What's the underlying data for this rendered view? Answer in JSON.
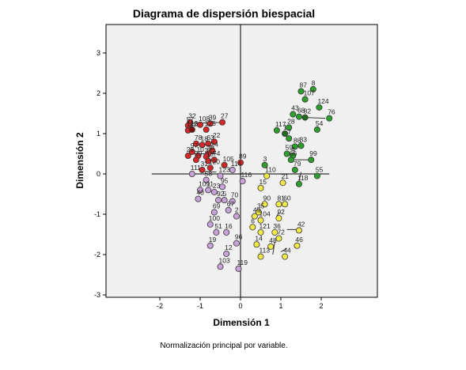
{
  "chart_data": {
    "type": "scatter",
    "title": "Diagrama de dispersión biespacial",
    "xlabel": "Dimensión 1",
    "ylabel": "Dimensión 2",
    "footnote": "Normalización principal por variable.",
    "xlim": [
      -3.2,
      3.3
    ],
    "ylim": [
      -3,
      3.7
    ],
    "xticks": [
      "-2",
      "-1",
      "0",
      "1",
      "2"
    ],
    "yticks": [
      "3",
      "2",
      "1",
      "0",
      "-1",
      "-2",
      "-3"
    ],
    "grid": false,
    "colors": {
      "red": "#d62728",
      "darkred": "#7a1010",
      "green": "#2ca02c",
      "darkgreen": "#1d6b1d",
      "yellow": "#f2e94a",
      "purple": "#c8a2d8",
      "background": "#f0f0f0"
    },
    "vectors": [
      {
        "from": [
          -1.2,
          1.25
        ],
        "to": [
          -0.45,
          1.28
        ]
      },
      {
        "from": [
          -1.2,
          0.5
        ],
        "to": [
          -0.6,
          0.5
        ]
      },
      {
        "from": [
          1.62,
          1.4
        ],
        "to": [
          2.1,
          1.38
        ]
      },
      {
        "from": [
          1.3,
          0.35
        ],
        "to": [
          1.75,
          0.35
        ]
      },
      {
        "from": [
          1.5,
          0.05
        ],
        "to": [
          1.45,
          -0.2
        ]
      },
      {
        "from": [
          0.95,
          -0.95
        ],
        "to": [
          0.9,
          -1.05
        ]
      },
      {
        "from": [
          1.15,
          -1.38
        ],
        "to": [
          1.45,
          -1.38
        ]
      },
      {
        "from": [
          1.0,
          -1.93
        ],
        "to": [
          1.15,
          -1.85
        ]
      },
      {
        "from": [
          0.85,
          -1.68
        ],
        "to": [
          0.8,
          -2.0
        ]
      },
      {
        "from": [
          -0.85,
          0.05
        ],
        "to": [
          -0.6,
          0.05
        ]
      }
    ],
    "points": [
      {
        "label": "8",
        "x": 1.8,
        "y": 2.1,
        "color": "green"
      },
      {
        "label": "87",
        "x": 1.5,
        "y": 2.05,
        "color": "green"
      },
      {
        "label": "107",
        "x": 1.6,
        "y": 1.85,
        "color": "green"
      },
      {
        "label": "124",
        "x": 1.95,
        "y": 1.65,
        "color": "green"
      },
      {
        "label": "43",
        "x": 1.3,
        "y": 1.48,
        "color": "green"
      },
      {
        "label": "68",
        "x": 1.45,
        "y": 1.42,
        "color": "green"
      },
      {
        "label": "82",
        "x": 1.6,
        "y": 1.4,
        "color": "darkgreen"
      },
      {
        "label": "76",
        "x": 2.2,
        "y": 1.38,
        "color": "green"
      },
      {
        "label": "54",
        "x": 1.9,
        "y": 1.1,
        "color": "green"
      },
      {
        "label": "28",
        "x": 1.2,
        "y": 1.15,
        "color": "green"
      },
      {
        "label": "117",
        "x": 0.9,
        "y": 1.08,
        "color": "green"
      },
      {
        "label": "1",
        "x": 1.1,
        "y": 1.0,
        "color": "darkgreen"
      },
      {
        "label": "7",
        "x": 1.2,
        "y": 0.88,
        "color": "green"
      },
      {
        "label": "33",
        "x": 1.5,
        "y": 0.7,
        "color": "green"
      },
      {
        "label": "88",
        "x": 1.35,
        "y": 0.68,
        "color": "green"
      },
      {
        "label": "59",
        "x": 1.15,
        "y": 0.5,
        "color": "green"
      },
      {
        "label": "4",
        "x": 1.3,
        "y": 0.45,
        "color": "green"
      },
      {
        "label": "66",
        "x": 1.25,
        "y": 0.35,
        "color": "green"
      },
      {
        "label": "99",
        "x": 1.75,
        "y": 0.35,
        "color": "green"
      },
      {
        "label": "3",
        "x": 0.6,
        "y": 0.22,
        "color": "green"
      },
      {
        "label": "79",
        "x": 1.35,
        "y": 0.1,
        "color": "green"
      },
      {
        "label": "55",
        "x": 1.9,
        "y": -0.05,
        "color": "green"
      },
      {
        "label": "118",
        "x": 1.45,
        "y": -0.25,
        "color": "green"
      },
      {
        "label": "32",
        "x": -1.25,
        "y": 1.28,
        "color": "red"
      },
      {
        "label": "57",
        "x": -1.3,
        "y": 1.2,
        "color": "red"
      },
      {
        "label": "108",
        "x": -1.0,
        "y": 1.22,
        "color": "red"
      },
      {
        "label": "39",
        "x": -0.75,
        "y": 1.25,
        "color": "red"
      },
      {
        "label": "27",
        "x": -0.45,
        "y": 1.28,
        "color": "red"
      },
      {
        "label": "112",
        "x": -1.3,
        "y": 1.08,
        "color": "red"
      },
      {
        "label": "13",
        "x": -1.2,
        "y": 1.1,
        "color": "darkred"
      },
      {
        "label": "125",
        "x": -0.85,
        "y": 1.1,
        "color": "red"
      },
      {
        "label": "78",
        "x": -1.1,
        "y": 0.75,
        "color": "red"
      },
      {
        "label": "18",
        "x": -0.95,
        "y": 0.72,
        "color": "red"
      },
      {
        "label": "63",
        "x": -0.8,
        "y": 0.75,
        "color": "red"
      },
      {
        "label": "22",
        "x": -0.65,
        "y": 0.8,
        "color": "red"
      },
      {
        "label": "97",
        "x": -1.2,
        "y": 0.55,
        "color": "red"
      },
      {
        "label": "24",
        "x": -0.7,
        "y": 0.58,
        "color": "red"
      },
      {
        "label": "20",
        "x": -0.8,
        "y": 0.5,
        "color": "red"
      },
      {
        "label": "29",
        "x": -1.3,
        "y": 0.45,
        "color": "red"
      },
      {
        "label": "10",
        "x": -1.05,
        "y": 0.45,
        "color": "red"
      },
      {
        "label": "37",
        "x": -0.85,
        "y": 0.43,
        "color": "red"
      },
      {
        "label": "30",
        "x": -1.1,
        "y": 0.35,
        "color": "red"
      },
      {
        "label": "17",
        "x": -0.8,
        "y": 0.32,
        "color": "red"
      },
      {
        "label": "74",
        "x": -0.65,
        "y": 0.35,
        "color": "red"
      },
      {
        "label": "89",
        "x": 0.0,
        "y": 0.28,
        "color": "red"
      },
      {
        "label": "105",
        "x": -0.4,
        "y": 0.22,
        "color": "red"
      },
      {
        "label": "31",
        "x": -0.95,
        "y": 0.1,
        "color": "red"
      },
      {
        "label": "120",
        "x": -0.75,
        "y": 0.15,
        "color": "red"
      },
      {
        "label": "114",
        "x": -0.2,
        "y": 0.1,
        "color": "purple"
      },
      {
        "label": "111",
        "x": -1.2,
        "y": 0.0,
        "color": "purple"
      },
      {
        "label": "123",
        "x": -0.5,
        "y": -0.05,
        "color": "purple"
      },
      {
        "label": "58",
        "x": -0.85,
        "y": -0.15,
        "color": "purple"
      },
      {
        "label": "116",
        "x": 0.05,
        "y": -0.18,
        "color": "purple"
      },
      {
        "label": "95",
        "x": -0.45,
        "y": -0.32,
        "color": "purple"
      },
      {
        "label": "109",
        "x": -1.0,
        "y": -0.4,
        "color": "purple"
      },
      {
        "label": "11",
        "x": -0.8,
        "y": -0.4,
        "color": "purple"
      },
      {
        "label": "23",
        "x": -0.65,
        "y": -0.45,
        "color": "purple"
      },
      {
        "label": "40",
        "x": -1.05,
        "y": -0.62,
        "color": "purple"
      },
      {
        "label": "92",
        "x": -0.55,
        "y": -0.65,
        "color": "purple"
      },
      {
        "label": "5",
        "x": -0.4,
        "y": -0.65,
        "color": "purple"
      },
      {
        "label": "70",
        "x": -0.2,
        "y": -0.68,
        "color": "purple"
      },
      {
        "label": "69",
        "x": -0.65,
        "y": -0.95,
        "color": "purple"
      },
      {
        "label": "67",
        "x": -0.3,
        "y": -0.9,
        "color": "purple"
      },
      {
        "label": "2",
        "x": -0.1,
        "y": -1.05,
        "color": "purple"
      },
      {
        "label": "100",
        "x": -0.75,
        "y": -1.25,
        "color": "purple"
      },
      {
        "label": "51",
        "x": -0.6,
        "y": -1.45,
        "color": "purple"
      },
      {
        "label": "16",
        "x": -0.35,
        "y": -1.45,
        "color": "purple"
      },
      {
        "label": "19",
        "x": -0.75,
        "y": -1.78,
        "color": "purple"
      },
      {
        "label": "96",
        "x": -0.1,
        "y": -1.72,
        "color": "purple"
      },
      {
        "label": "12",
        "x": -0.35,
        "y": -1.98,
        "color": "purple"
      },
      {
        "label": "103",
        "x": -0.5,
        "y": -2.3,
        "color": "purple"
      },
      {
        "label": "119",
        "x": -0.05,
        "y": -2.35,
        "color": "purple"
      },
      {
        "label": "110",
        "x": 0.65,
        "y": -0.05,
        "color": "yellow"
      },
      {
        "label": "21",
        "x": 1.05,
        "y": -0.22,
        "color": "yellow"
      },
      {
        "label": "15",
        "x": 0.5,
        "y": -0.35,
        "color": "yellow"
      },
      {
        "label": "90",
        "x": 0.6,
        "y": -0.75,
        "color": "yellow"
      },
      {
        "label": "81",
        "x": 0.95,
        "y": -0.75,
        "color": "yellow"
      },
      {
        "label": "60",
        "x": 1.1,
        "y": -0.75,
        "color": "yellow"
      },
      {
        "label": "35",
        "x": 0.45,
        "y": -0.95,
        "color": "yellow"
      },
      {
        "label": "49",
        "x": 0.35,
        "y": -1.05,
        "color": "yellow"
      },
      {
        "label": "104",
        "x": 0.5,
        "y": -1.15,
        "color": "yellow"
      },
      {
        "label": "92",
        "x": 0.95,
        "y": -1.1,
        "color": "yellow"
      },
      {
        "label": "6",
        "x": 0.3,
        "y": -1.32,
        "color": "yellow"
      },
      {
        "label": "121",
        "x": 0.5,
        "y": -1.45,
        "color": "yellow"
      },
      {
        "label": "36",
        "x": 0.85,
        "y": -1.45,
        "color": "yellow"
      },
      {
        "label": "42",
        "x": 1.45,
        "y": -1.4,
        "color": "yellow"
      },
      {
        "label": "72",
        "x": 0.95,
        "y": -1.6,
        "color": "yellow"
      },
      {
        "label": "14",
        "x": 0.4,
        "y": -1.75,
        "color": "yellow"
      },
      {
        "label": "48",
        "x": 0.75,
        "y": -1.8,
        "color": "yellow"
      },
      {
        "label": "46",
        "x": 1.4,
        "y": -1.78,
        "color": "yellow"
      },
      {
        "label": "113",
        "x": 0.5,
        "y": -2.05,
        "color": "yellow"
      },
      {
        "label": "44",
        "x": 1.1,
        "y": -2.05,
        "color": "yellow"
      }
    ]
  }
}
